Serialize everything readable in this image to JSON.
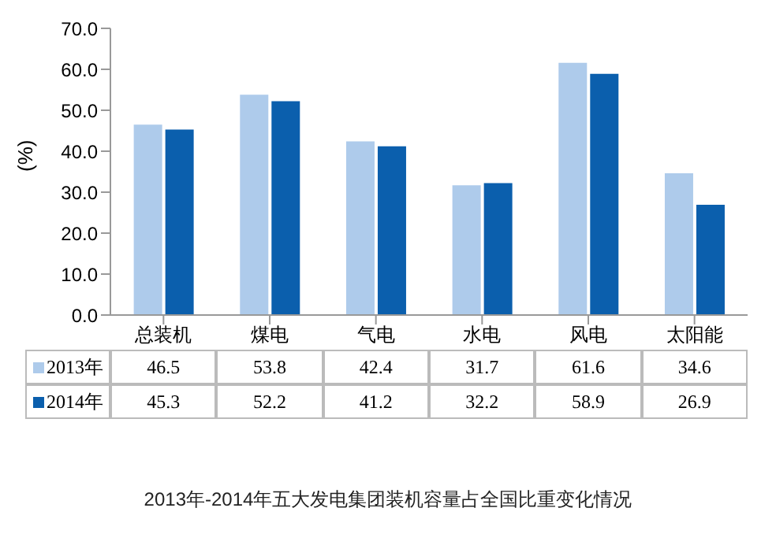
{
  "chart_data": {
    "type": "bar",
    "title": "2013年-2014年五大发电集团装机容量占全国比重变化情况",
    "ylabel": "(%)",
    "categories": [
      "总装机",
      "煤电",
      "气电",
      "水电",
      "风电",
      "太阳能"
    ],
    "series": [
      {
        "name": "2013年",
        "color": "#aecbeb",
        "values": [
          46.5,
          53.8,
          42.4,
          31.7,
          61.6,
          34.6
        ]
      },
      {
        "name": "2014年",
        "color": "#0b5fad",
        "values": [
          45.3,
          52.2,
          41.2,
          32.2,
          58.9,
          26.9
        ]
      }
    ],
    "ylim": [
      0,
      70
    ],
    "yticks": [
      {
        "value": 0,
        "label": "0.0"
      },
      {
        "value": 10,
        "label": "10.0"
      },
      {
        "value": 20,
        "label": "20.0"
      },
      {
        "value": 30,
        "label": "30.0"
      },
      {
        "value": 40,
        "label": "40.0"
      },
      {
        "value": 50,
        "label": "50.0"
      },
      {
        "value": 60,
        "label": "60.0"
      },
      {
        "value": 70,
        "label": "70.0"
      }
    ],
    "grid": false,
    "legend": "bottom",
    "data_labels": true
  }
}
